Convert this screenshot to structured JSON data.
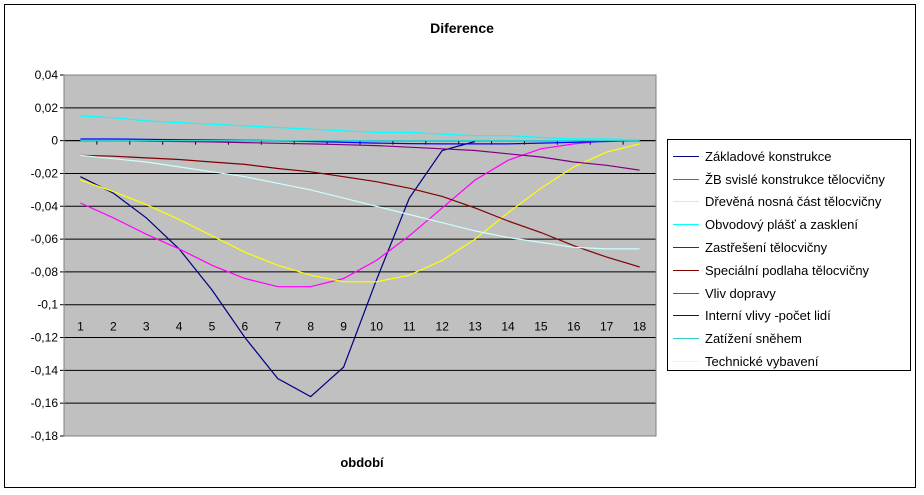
{
  "chart_data": {
    "type": "line",
    "title": "Diference",
    "xlabel": "období",
    "ylabel": "",
    "categories": [
      "1",
      "2",
      "3",
      "4",
      "5",
      "6",
      "7",
      "8",
      "9",
      "10",
      "11",
      "12",
      "13",
      "14",
      "15",
      "16",
      "17",
      "18"
    ],
    "ylim": [
      -0.18,
      0.04
    ],
    "yticks": [
      "0,04",
      "0,02",
      "0",
      "-0,02",
      "-0,04",
      "-0,06",
      "-0,08",
      "-0,1",
      "-0,12",
      "-0,14",
      "-0,16",
      "-0,18"
    ],
    "grid": true,
    "legend_position": "right",
    "plot_background": "#c0c0c0",
    "series": [
      {
        "name": "Základové konstrukce",
        "color": "#000080",
        "values": [
          -0.022,
          -0.032,
          -0.047,
          -0.066,
          -0.091,
          -0.12,
          -0.145,
          -0.156,
          -0.138,
          -0.085,
          -0.035,
          -0.006,
          -0.0005,
          null,
          null,
          null,
          null,
          null
        ]
      },
      {
        "name": "ŽB svislé konstrukce tělocvičny",
        "color": "#ff00ff",
        "values": [
          -0.038,
          -0.047,
          -0.057,
          -0.066,
          -0.076,
          -0.084,
          -0.089,
          -0.089,
          -0.084,
          -0.073,
          -0.058,
          -0.041,
          -0.024,
          -0.012,
          -0.005,
          -0.002,
          0.0,
          0.0
        ]
      },
      {
        "name": "Dřevěná nosná část tělocvičny",
        "color": "#ffff00",
        "values": [
          -0.024,
          -0.031,
          -0.039,
          -0.048,
          -0.058,
          -0.068,
          -0.076,
          -0.082,
          -0.086,
          -0.086,
          -0.082,
          -0.073,
          -0.06,
          -0.044,
          -0.029,
          -0.016,
          -0.007,
          -0.002
        ]
      },
      {
        "name": "Obvodový plášť a zasklení",
        "color": "#00ffff",
        "values": [
          0.015,
          0.014,
          0.012,
          0.011,
          0.01,
          0.009,
          0.008,
          0.007,
          0.006,
          0.005,
          0.005,
          0.004,
          0.003,
          0.003,
          0.002,
          0.001,
          0.001,
          0.0005
        ]
      },
      {
        "name": "Zastřešení tělocvičny",
        "color": "#800080",
        "values": [
          0.0,
          0.0,
          -0.0003,
          -0.0005,
          -0.0008,
          -0.0012,
          -0.0016,
          -0.002,
          -0.0025,
          -0.003,
          -0.004,
          -0.005,
          -0.006,
          -0.008,
          -0.01,
          -0.013,
          -0.015,
          -0.018
        ]
      },
      {
        "name": "Speciální podlaha tělocvičny",
        "color": "#800000",
        "values": [
          -0.009,
          -0.0095,
          -0.0105,
          -0.0115,
          -0.013,
          -0.0145,
          -0.017,
          -0.019,
          -0.022,
          -0.025,
          -0.029,
          -0.034,
          -0.041,
          -0.049,
          -0.056,
          -0.064,
          -0.071,
          -0.077
        ]
      },
      {
        "name": "Vliv dopravy",
        "color": "#008080",
        "values": [
          0.0,
          0.0,
          0.0,
          0.0,
          0.0,
          0.0,
          0.0,
          0.0,
          0.0,
          0.0,
          0.0,
          0.0,
          0.0,
          0.0,
          0.0,
          0.0,
          0.0,
          0.0
        ]
      },
      {
        "name": "Interní vlivy -počet lidí",
        "color": "#0000ff",
        "values": [
          0.001,
          0.001,
          0.0008,
          0.0006,
          0.0004,
          0.0002,
          0.0,
          -0.0005,
          -0.001,
          -0.0015,
          -0.0018,
          -0.002,
          -0.002,
          -0.002,
          -0.0015,
          -0.001,
          -0.0005,
          0.0
        ]
      },
      {
        "name": "Zatížení sněhem",
        "color": "#33cccc",
        "values": [
          0.0,
          0.0,
          0.0,
          0.0,
          0.0,
          0.0,
          0.0,
          0.0,
          0.0,
          0.0,
          0.0,
          0.0,
          0.0,
          0.0,
          0.0,
          0.0,
          0.0,
          0.0
        ]
      },
      {
        "name": "Technické vybavení",
        "color": "#ccffff",
        "values": [
          -0.009,
          -0.011,
          -0.013,
          -0.016,
          -0.019,
          -0.022,
          -0.026,
          -0.03,
          -0.035,
          -0.04,
          -0.045,
          -0.05,
          -0.055,
          -0.059,
          -0.062,
          -0.065,
          -0.066,
          -0.066
        ]
      }
    ]
  }
}
